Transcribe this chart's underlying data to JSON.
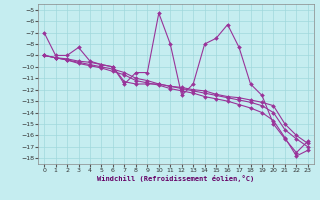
{
  "xlabel": "Windchill (Refroidissement éolien,°C)",
  "xlim": [
    -0.5,
    23.5
  ],
  "ylim": [
    -18.5,
    -4.5
  ],
  "yticks": [
    -5,
    -6,
    -7,
    -8,
    -9,
    -10,
    -11,
    -12,
    -13,
    -14,
    -15,
    -16,
    -17,
    -18
  ],
  "xticks": [
    0,
    1,
    2,
    3,
    4,
    5,
    6,
    7,
    8,
    9,
    10,
    11,
    12,
    13,
    14,
    15,
    16,
    17,
    18,
    19,
    20,
    21,
    22,
    23
  ],
  "background_color": "#c5edf0",
  "grid_color": "#a0d8dc",
  "line_color": "#993399",
  "series": [
    {
      "x": [
        0,
        1,
        2,
        3,
        4,
        5,
        6,
        7,
        8,
        9,
        10,
        11,
        12,
        13,
        14,
        15,
        16,
        17,
        18,
        19,
        20,
        21,
        22,
        23
      ],
      "y": [
        -7.0,
        -9.0,
        -9.0,
        -8.3,
        -9.5,
        -9.8,
        -10.0,
        -11.5,
        -10.5,
        -10.5,
        -5.3,
        -8.0,
        -12.5,
        -11.5,
        -8.0,
        -7.5,
        -6.3,
        -8.3,
        -11.5,
        -12.5,
        -15.0,
        -16.3,
        -17.5,
        -16.5
      ]
    },
    {
      "x": [
        0,
        1,
        2,
        3,
        4,
        5,
        6,
        7,
        8,
        9,
        10,
        11,
        12,
        13,
        14,
        15,
        16,
        17,
        18,
        19,
        20,
        21,
        22,
        23
      ],
      "y": [
        -9.0,
        -9.2,
        -9.3,
        -9.5,
        -9.6,
        -9.8,
        -10.0,
        -11.3,
        -11.5,
        -11.5,
        -11.5,
        -11.7,
        -11.8,
        -12.0,
        -12.1,
        -12.4,
        -12.6,
        -12.7,
        -12.9,
        -13.1,
        -13.4,
        -15.0,
        -16.0,
        -16.7
      ]
    },
    {
      "x": [
        0,
        1,
        2,
        3,
        4,
        5,
        6,
        7,
        8,
        9,
        10,
        11,
        12,
        13,
        14,
        15,
        16,
        17,
        18,
        19,
        20,
        21,
        22,
        23
      ],
      "y": [
        -9.0,
        -9.2,
        -9.4,
        -9.6,
        -9.8,
        -10.0,
        -10.2,
        -10.5,
        -11.0,
        -11.2,
        -11.5,
        -11.7,
        -11.9,
        -12.1,
        -12.3,
        -12.5,
        -12.7,
        -12.9,
        -13.1,
        -13.4,
        -14.0,
        -15.5,
        -16.3,
        -17.0
      ]
    },
    {
      "x": [
        0,
        1,
        2,
        3,
        4,
        5,
        6,
        7,
        8,
        9,
        10,
        11,
        12,
        13,
        14,
        15,
        16,
        17,
        18,
        19,
        20,
        21,
        22,
        23
      ],
      "y": [
        -9.0,
        -9.2,
        -9.4,
        -9.7,
        -9.9,
        -10.1,
        -10.4,
        -10.7,
        -11.2,
        -11.4,
        -11.6,
        -11.9,
        -12.1,
        -12.3,
        -12.6,
        -12.8,
        -13.0,
        -13.3,
        -13.6,
        -14.0,
        -14.7,
        -16.2,
        -17.8,
        -17.3
      ]
    }
  ],
  "marker": "D",
  "markersize": 2.0,
  "linewidth": 0.8
}
